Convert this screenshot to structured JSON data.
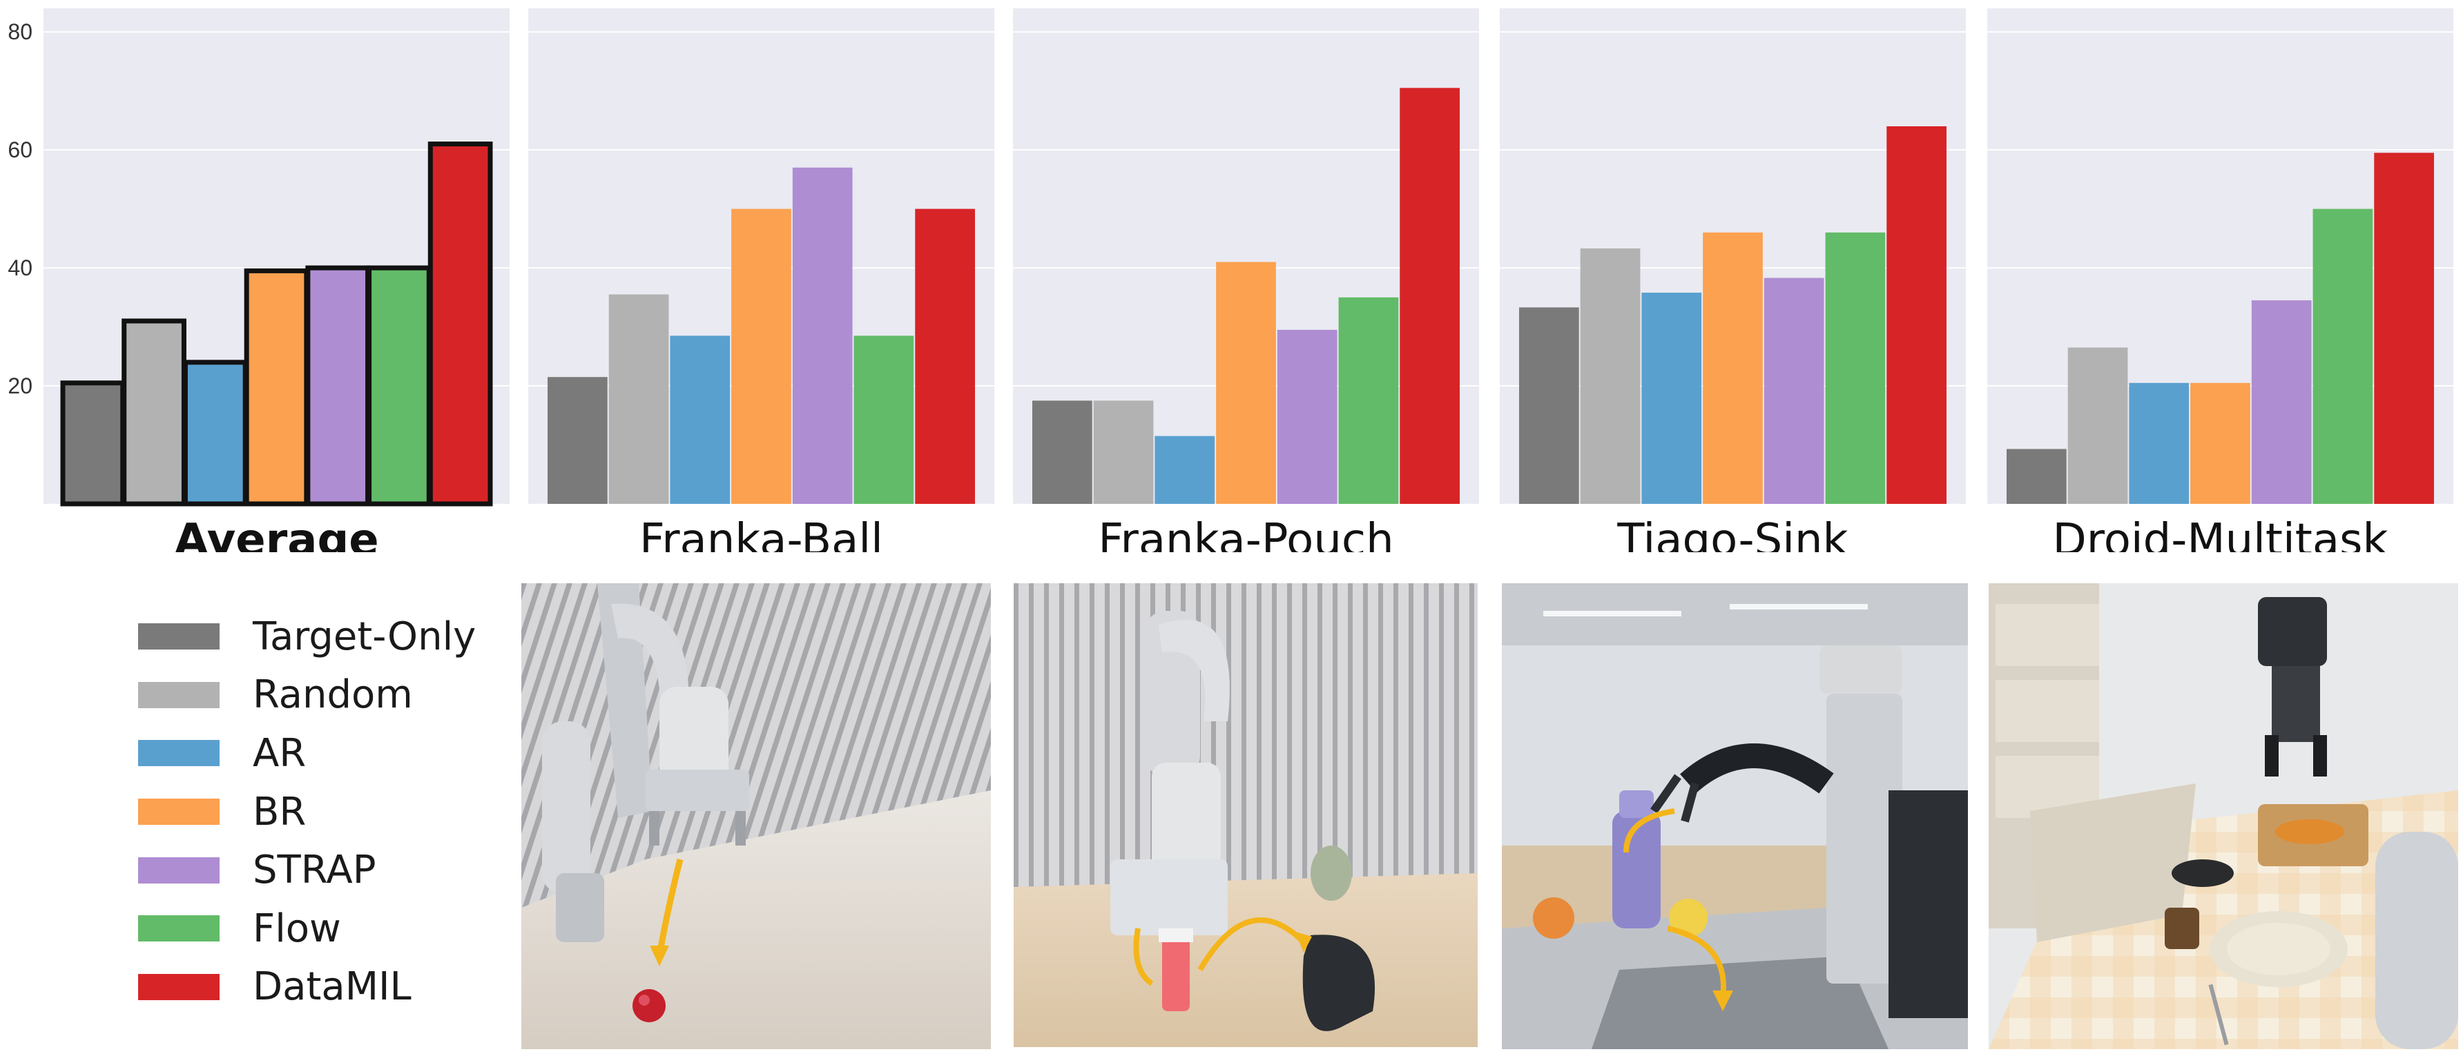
{
  "colors": {
    "panel_bg": "#eaeaf2",
    "Target-Only": "#7a7a7a",
    "Random": "#b2b2b2",
    "AR": "#5aa0cf",
    "BR": "#fba150",
    "STRAP": "#ae8dd2",
    "Flow": "#62bb68",
    "DataMIL": "#d72427"
  },
  "chart_data": [
    {
      "type": "bar",
      "title": "Average",
      "categories": [
        "Target-Only",
        "Random",
        "AR",
        "BR",
        "STRAP",
        "Flow",
        "DataMIL"
      ],
      "values": [
        20.5,
        31,
        24,
        39.5,
        40,
        40,
        61
      ],
      "ylim": [
        0,
        84
      ],
      "yticks": [
        20,
        40,
        60,
        80
      ],
      "grid": true,
      "outlined": true
    },
    {
      "type": "bar",
      "title": "Franka-Ball",
      "categories": [
        "Target-Only",
        "Random",
        "AR",
        "BR",
        "STRAP",
        "Flow",
        "DataMIL"
      ],
      "values": [
        21.5,
        35.5,
        28.5,
        50,
        57,
        28.5,
        50
      ],
      "ylim": [
        0,
        84
      ],
      "grid": true,
      "outlined": false
    },
    {
      "type": "bar",
      "title": "Franka-Pouch",
      "categories": [
        "Target-Only",
        "Random",
        "AR",
        "BR",
        "STRAP",
        "Flow",
        "DataMIL"
      ],
      "values": [
        17.5,
        17.5,
        11.5,
        41,
        29.5,
        35,
        70.5
      ],
      "ylim": [
        0,
        84
      ],
      "grid": true,
      "outlined": false
    },
    {
      "type": "bar",
      "title": "Tiago-Sink",
      "categories": [
        "Target-Only",
        "Random",
        "AR",
        "BR",
        "STRAP",
        "Flow",
        "DataMIL"
      ],
      "values": [
        33.3,
        43.3,
        35.8,
        46,
        38.3,
        46,
        64
      ],
      "ylim": [
        0,
        84
      ],
      "grid": true,
      "outlined": false
    },
    {
      "type": "bar",
      "title": "Droid-Multitask",
      "categories": [
        "Target-Only",
        "Random",
        "AR",
        "BR",
        "STRAP",
        "Flow",
        "DataMIL"
      ],
      "values": [
        9.3,
        26.5,
        20.5,
        20.5,
        34.5,
        50,
        59.5
      ],
      "ylim": [
        0,
        84
      ],
      "grid": true,
      "outlined": false
    }
  ],
  "legend": {
    "position": "bottom-left",
    "items": [
      {
        "label": "Target-Only",
        "key": "Target-Only"
      },
      {
        "label": "Random",
        "key": "Random"
      },
      {
        "label": "AR",
        "key": "AR"
      },
      {
        "label": "BR",
        "key": "BR"
      },
      {
        "label": "STRAP",
        "key": "STRAP"
      },
      {
        "label": "Flow",
        "key": "Flow"
      },
      {
        "label": "DataMIL",
        "key": "DataMIL"
      }
    ]
  },
  "photos": [
    {
      "scene": "Franka-Ball"
    },
    {
      "scene": "Franka-Pouch"
    },
    {
      "scene": "Tiago-Sink"
    },
    {
      "scene": "Droid-Multitask"
    }
  ]
}
